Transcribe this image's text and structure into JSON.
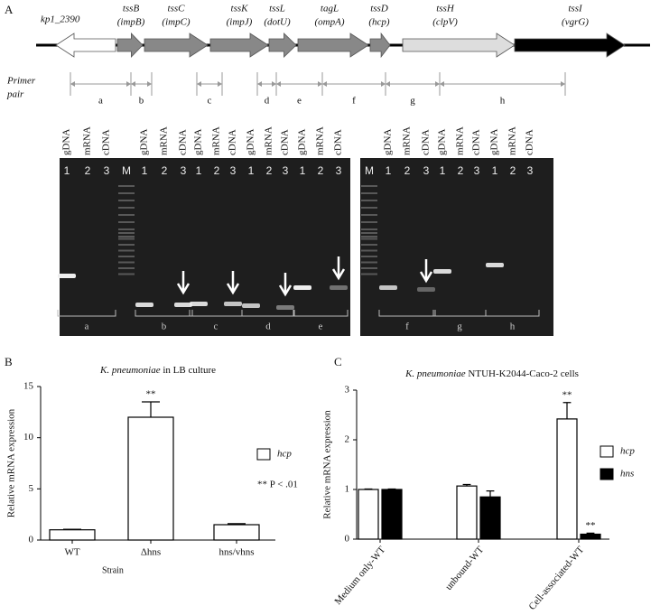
{
  "panel_labels": [
    "A",
    "B",
    "C"
  ],
  "panel_a": {
    "genes": [
      {
        "name": "kp1_2390",
        "alias": null
      },
      {
        "name": "tssB",
        "alias": "(impB)"
      },
      {
        "name": "tssC",
        "alias": "(impC)"
      },
      {
        "name": "tssK",
        "alias": "(impJ)"
      },
      {
        "name": "tssL",
        "alias": "(dotU)"
      },
      {
        "name": "tagL",
        "alias": "(ompA)"
      },
      {
        "name": "tssD",
        "alias": "(hcp)"
      },
      {
        "name": "tssH",
        "alias": "(clpV)"
      },
      {
        "name": "tssI",
        "alias": "(vgrG)"
      }
    ],
    "primer_label": [
      "Primer",
      "pair"
    ],
    "primer_pairs": [
      "a",
      "b",
      "c",
      "d",
      "e",
      "f",
      "g",
      "h"
    ],
    "gel_left": {
      "lanes": [
        {
          "header": "gDNA",
          "number": "1"
        },
        {
          "header": "mRNA",
          "number": "2"
        },
        {
          "header": "cDNA",
          "number": "3"
        },
        {
          "header": null,
          "number": "M"
        },
        {
          "header": "gDNA",
          "number": "1"
        },
        {
          "header": "mRNA",
          "number": "2"
        },
        {
          "header": "cDNA",
          "number": "3"
        },
        {
          "header": "gDNA",
          "number": "1"
        },
        {
          "header": "mRNA",
          "number": "2"
        },
        {
          "header": "cDNA",
          "number": "3"
        },
        {
          "header": "gDNA",
          "number": "1"
        },
        {
          "header": "mRNA",
          "number": "2"
        },
        {
          "header": "cDNA",
          "number": "3"
        },
        {
          "header": "gDNA",
          "number": "1"
        },
        {
          "header": "mRNA",
          "number": "2"
        },
        {
          "header": "cDNA",
          "number": "3"
        }
      ]
    },
    "gel_right": {
      "lanes": [
        {
          "header": null,
          "number": "M"
        },
        {
          "header": "gDNA",
          "number": "1"
        },
        {
          "header": "mRNA",
          "number": "2"
        },
        {
          "header": "cDNA",
          "number": "3"
        },
        {
          "header": "gDNA",
          "number": "1"
        },
        {
          "header": "mRNA",
          "number": "2"
        },
        {
          "header": "cDNA",
          "number": "3"
        },
        {
          "header": "gDNA",
          "number": "1"
        },
        {
          "header": "mRNA",
          "number": "2"
        },
        {
          "header": "cDNA",
          "number": "3"
        }
      ]
    }
  },
  "chart_data": [
    {
      "type": "bar",
      "title_italic": "K. pneumoniae",
      "title": "in LB culture",
      "y_label": "Relative mRNA expression",
      "x_label": "Strain",
      "categories": [
        "WT",
        "Δhns",
        "hns/vhns"
      ],
      "series": [
        {
          "name": "hcp",
          "color": "#ffffff",
          "values": [
            1,
            12,
            1.5
          ],
          "errors": [
            0.05,
            1.5,
            0.1
          ],
          "significance": [
            null,
            "**",
            null
          ]
        }
      ],
      "ylim": [
        0,
        15
      ],
      "yticks": [
        0,
        5,
        10,
        15
      ],
      "note": "** P < .01"
    },
    {
      "type": "bar",
      "title_italic": "K. pneumoniae",
      "title": "NTUH-K2044-Caco-2 cells",
      "y_label": "Relative mRNA expression",
      "categories": [
        "Medium only-WT",
        "unbound-WT",
        "Cell-associated-WT"
      ],
      "series": [
        {
          "name": "hcp",
          "color": "#ffffff",
          "values": [
            1,
            1.07,
            2.42
          ],
          "errors": [
            0.01,
            0.03,
            0.33
          ],
          "significance": [
            null,
            null,
            "**"
          ]
        },
        {
          "name": "hns",
          "color": "#000000",
          "values": [
            1,
            0.85,
            0.1
          ],
          "errors": [
            0.01,
            0.12,
            0.02
          ],
          "significance": [
            null,
            null,
            "**"
          ]
        }
      ],
      "ylim": [
        0,
        3
      ],
      "yticks": [
        0,
        1,
        2,
        3
      ]
    }
  ]
}
